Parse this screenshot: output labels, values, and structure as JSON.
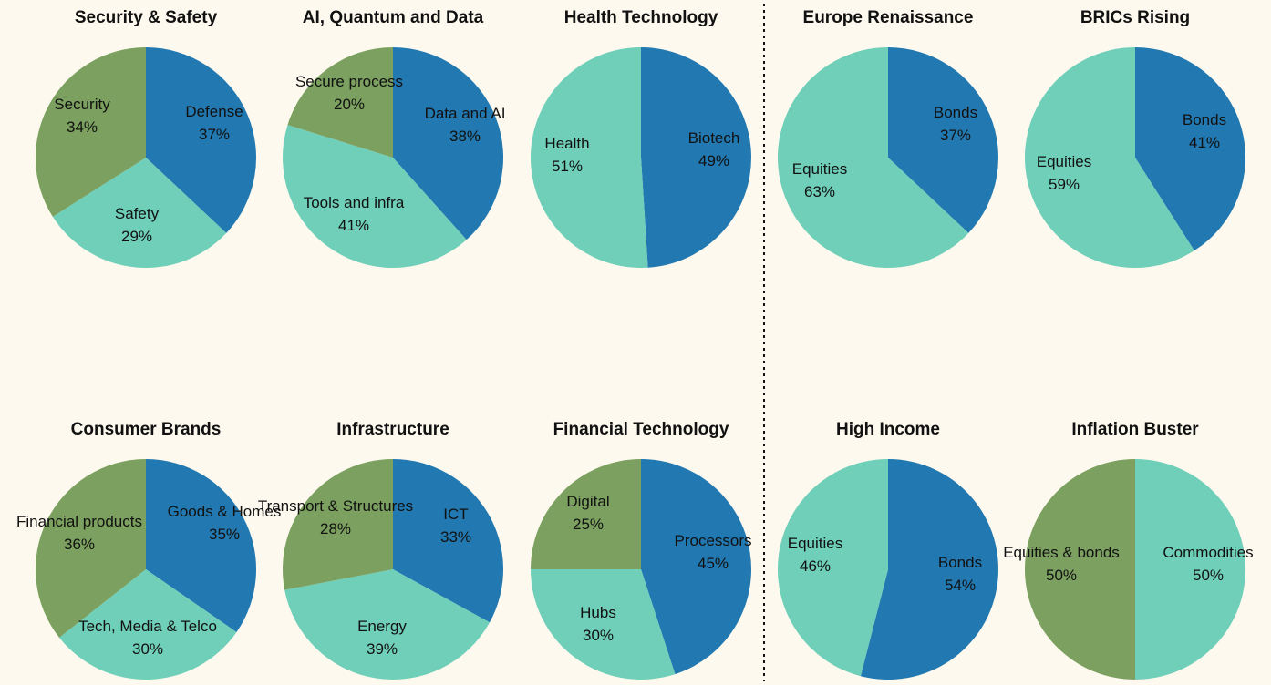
{
  "colors": {
    "blue": "#2278b0",
    "teal": "#6fcfb9",
    "green": "#7ba05f",
    "background": "#fdf9ee"
  },
  "chart_data": [
    {
      "type": "pie",
      "title": "Security & Safety",
      "slices": [
        {
          "label": "Defense",
          "pct_text": "37%",
          "value": 37,
          "color": "blue"
        },
        {
          "label": "Safety",
          "pct_text": "29%",
          "value": 29,
          "color": "teal"
        },
        {
          "label": "Security",
          "pct_text": "34%",
          "value": 34,
          "color": "green"
        }
      ]
    },
    {
      "type": "pie",
      "title": "AI, Quantum and Data",
      "slices": [
        {
          "label": "Data and AI",
          "pct_text": "38%",
          "value": 38,
          "color": "blue"
        },
        {
          "label": "Tools and infra",
          "pct_text": "41%",
          "value": 41,
          "color": "teal"
        },
        {
          "label": "Secure process",
          "pct_text": "20%",
          "value": 20,
          "color": "green"
        }
      ]
    },
    {
      "type": "pie",
      "title": "Health Technology",
      "slices": [
        {
          "label": "Biotech",
          "pct_text": "49%",
          "value": 49,
          "color": "blue"
        },
        {
          "label": "Health",
          "pct_text": "51%",
          "value": 51,
          "color": "teal"
        }
      ]
    },
    {
      "type": "pie",
      "title": "Europe Renaissance",
      "slices": [
        {
          "label": "Bonds",
          "pct_text": "37%",
          "value": 37,
          "color": "blue"
        },
        {
          "label": "Equities",
          "pct_text": "63%",
          "value": 63,
          "color": "teal"
        }
      ]
    },
    {
      "type": "pie",
      "title": "BRICs Rising",
      "slices": [
        {
          "label": "Bonds",
          "pct_text": "41%",
          "value": 41,
          "color": "blue"
        },
        {
          "label": "Equities",
          "pct_text": "59%",
          "value": 59,
          "color": "teal"
        }
      ]
    },
    {
      "type": "pie",
      "title": "Consumer Brands",
      "slices": [
        {
          "label": "Goods & Homes",
          "pct_text": "35%",
          "value": 35,
          "color": "blue"
        },
        {
          "label": "Tech, Media & Telco",
          "pct_text": "30%",
          "value": 30,
          "color": "teal"
        },
        {
          "label": "Financial products",
          "pct_text": "36%",
          "value": 36,
          "color": "green"
        }
      ]
    },
    {
      "type": "pie",
      "title": "Infrastructure",
      "slices": [
        {
          "label": "ICT",
          "pct_text": "33%",
          "value": 33,
          "color": "blue"
        },
        {
          "label": "Energy",
          "pct_text": "39%",
          "value": 39,
          "color": "teal"
        },
        {
          "label": "Transport & Structures",
          "pct_text": "28%",
          "value": 28,
          "color": "green"
        }
      ]
    },
    {
      "type": "pie",
      "title": "Financial Technology",
      "slices": [
        {
          "label": "Processors",
          "pct_text": "45%",
          "value": 45,
          "color": "blue"
        },
        {
          "label": "Hubs",
          "pct_text": "30%",
          "value": 30,
          "color": "teal"
        },
        {
          "label": "Digital",
          "pct_text": "25%",
          "value": 25,
          "color": "green"
        }
      ]
    },
    {
      "type": "pie",
      "title": "High Income",
      "slices": [
        {
          "label": "Bonds",
          "pct_text": "54%",
          "value": 54,
          "color": "blue"
        },
        {
          "label": "Equities",
          "pct_text": "46%",
          "value": 46,
          "color": "teal"
        }
      ]
    },
    {
      "type": "pie",
      "title": "Inflation Buster",
      "slices": [
        {
          "label": "Commodities",
          "pct_text": "50%",
          "value": 50,
          "color": "teal"
        },
        {
          "label": "Equities & bonds",
          "pct_text": "50%",
          "value": 50,
          "color": "green"
        }
      ]
    }
  ]
}
